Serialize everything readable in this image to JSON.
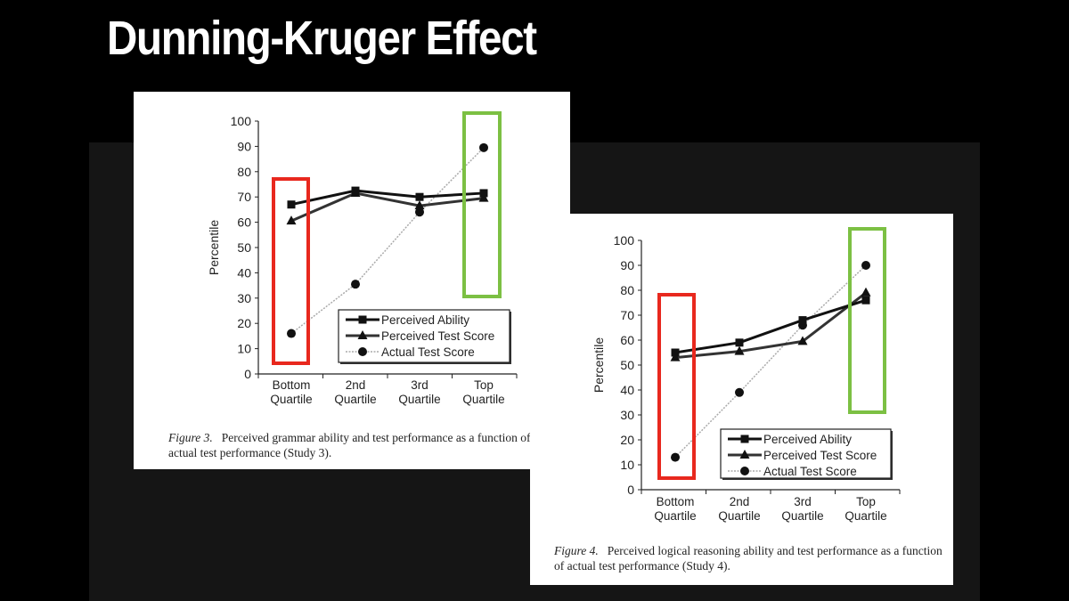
{
  "title": "Dunning-Kruger Effect",
  "colors": {
    "bottom_highlight": "#e8281e",
    "top_highlight": "#7cc043",
    "background": "#000000"
  },
  "chart_data": [
    {
      "type": "line",
      "ylabel": "Percentile",
      "ylim": [
        0,
        100
      ],
      "yticks": [
        0,
        10,
        20,
        30,
        40,
        50,
        60,
        70,
        80,
        90,
        100
      ],
      "categories": [
        "Bottom Quartile",
        "2nd Quartile",
        "3rd Quartile",
        "Top Quartile"
      ],
      "category_lines": [
        [
          "Bottom",
          "Quartile"
        ],
        [
          "2nd",
          "Quartile"
        ],
        [
          "3rd",
          "Quartile"
        ],
        [
          "Top",
          "Quartile"
        ]
      ],
      "legend": "bottom-right",
      "series": [
        {
          "name": "Perceived Ability",
          "marker": "square",
          "values": [
            67,
            72.5,
            70,
            71.5
          ]
        },
        {
          "name": "Perceived Test Score",
          "marker": "triangle",
          "values": [
            60.5,
            71.5,
            66.5,
            69.5
          ]
        },
        {
          "name": "Actual Test Score",
          "marker": "circle",
          "values": [
            16,
            35.5,
            64,
            89.5
          ]
        }
      ],
      "caption_label": "Figure 3.",
      "caption_text": "Perceived grammar ability and test performance as a function of actual test performance (Study 3)."
    },
    {
      "type": "line",
      "ylabel": "Percentile",
      "ylim": [
        0,
        100
      ],
      "yticks": [
        0,
        10,
        20,
        30,
        40,
        50,
        60,
        70,
        80,
        90,
        100
      ],
      "categories": [
        "Bottom Quartile",
        "2nd Quartile",
        "3rd Quartile",
        "Top Quartile"
      ],
      "category_lines": [
        [
          "Bottom",
          "Quartile"
        ],
        [
          "2nd",
          "Quartile"
        ],
        [
          "3rd",
          "Quartile"
        ],
        [
          "Top",
          "Quartile"
        ]
      ],
      "legend": "bottom-right",
      "series": [
        {
          "name": "Perceived Ability",
          "marker": "square",
          "values": [
            55,
            59,
            68,
            76
          ]
        },
        {
          "name": "Perceived Test Score",
          "marker": "triangle",
          "values": [
            53,
            55.5,
            59.5,
            79
          ]
        },
        {
          "name": "Actual Test Score",
          "marker": "circle",
          "values": [
            13,
            39,
            66,
            90
          ]
        }
      ],
      "caption_label": "Figure 4.",
      "caption_text": "Perceived logical reasoning ability and test performance as a function of actual test performance (Study 4)."
    }
  ]
}
